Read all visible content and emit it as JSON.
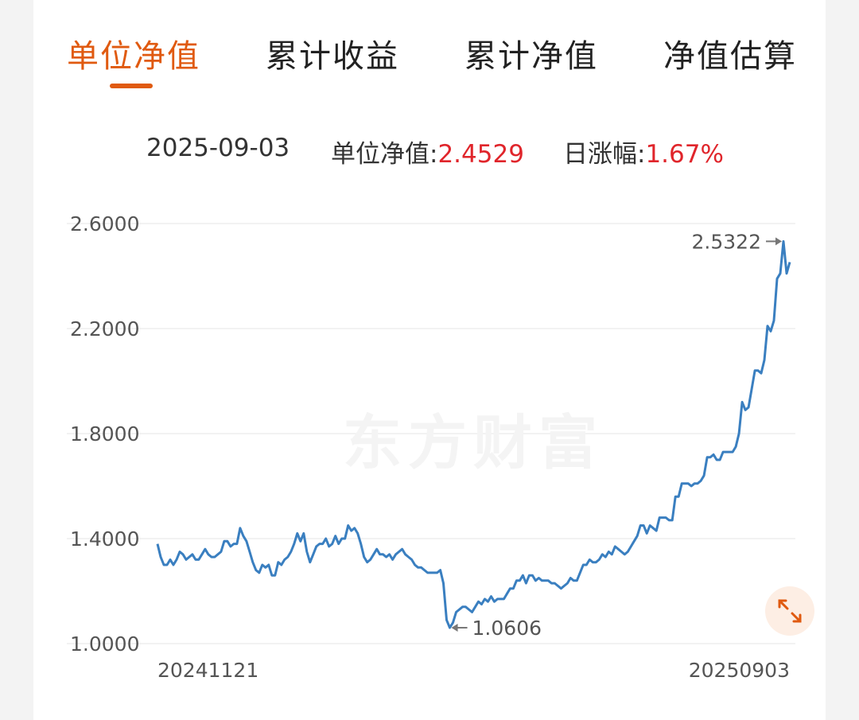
{
  "tabs": [
    {
      "label": "单位净值",
      "active": true
    },
    {
      "label": "累计收益",
      "active": false
    },
    {
      "label": "累计净值",
      "active": false
    },
    {
      "label": "净值估算",
      "active": false
    }
  ],
  "info": {
    "date": "2025-09-03",
    "nav_label": "单位净值:",
    "nav_value": "2.4529",
    "change_label": "日涨幅:",
    "change_value": "1.67%"
  },
  "watermark": "东方财富",
  "colors": {
    "accent": "#e05a10",
    "line": "#3a7fc0",
    "up": "#e0252b"
  },
  "chart_data": {
    "type": "line",
    "x_start_label": "20241121",
    "x_end_label": "20250903",
    "ylim": [
      1.0,
      2.6
    ],
    "yticks": [
      "2.6000",
      "2.2000",
      "1.8000",
      "1.4000",
      "1.0000"
    ],
    "ytick_values": [
      2.6,
      2.2,
      1.8,
      1.4,
      1.0
    ],
    "max_label": "2.5322",
    "max_value": 2.5322,
    "min_label": "1.0606",
    "min_value": 1.0606,
    "series": [
      {
        "values": [
          1.38,
          1.33,
          1.3,
          1.3,
          1.32,
          1.3,
          1.32,
          1.35,
          1.34,
          1.32,
          1.33,
          1.34,
          1.32,
          1.32,
          1.34,
          1.36,
          1.34,
          1.33,
          1.33,
          1.34,
          1.35,
          1.39,
          1.39,
          1.37,
          1.38,
          1.38,
          1.44,
          1.41,
          1.39,
          1.35,
          1.31,
          1.28,
          1.27,
          1.3,
          1.29,
          1.3,
          1.26,
          1.26,
          1.31,
          1.3,
          1.32,
          1.33,
          1.35,
          1.38,
          1.42,
          1.39,
          1.42,
          1.35,
          1.31,
          1.34,
          1.37,
          1.38,
          1.38,
          1.4,
          1.37,
          1.38,
          1.41,
          1.38,
          1.4,
          1.4,
          1.45,
          1.43,
          1.44,
          1.42,
          1.38,
          1.33,
          1.31,
          1.32,
          1.34,
          1.36,
          1.34,
          1.34,
          1.33,
          1.34,
          1.32,
          1.34,
          1.35,
          1.36,
          1.34,
          1.33,
          1.32,
          1.3,
          1.29,
          1.29,
          1.28,
          1.27,
          1.27,
          1.27,
          1.27,
          1.28,
          1.23,
          1.09,
          1.0606,
          1.08,
          1.12,
          1.13,
          1.14,
          1.14,
          1.13,
          1.12,
          1.14,
          1.16,
          1.15,
          1.17,
          1.16,
          1.18,
          1.16,
          1.17,
          1.17,
          1.17,
          1.19,
          1.21,
          1.21,
          1.24,
          1.24,
          1.26,
          1.23,
          1.26,
          1.26,
          1.24,
          1.25,
          1.24,
          1.24,
          1.24,
          1.23,
          1.23,
          1.22,
          1.21,
          1.22,
          1.23,
          1.25,
          1.24,
          1.24,
          1.27,
          1.3,
          1.3,
          1.32,
          1.31,
          1.31,
          1.32,
          1.34,
          1.33,
          1.35,
          1.34,
          1.37,
          1.36,
          1.35,
          1.34,
          1.35,
          1.37,
          1.39,
          1.41,
          1.45,
          1.45,
          1.42,
          1.45,
          1.44,
          1.43,
          1.48,
          1.48,
          1.48,
          1.47,
          1.47,
          1.56,
          1.56,
          1.61,
          1.61,
          1.61,
          1.6,
          1.61,
          1.61,
          1.62,
          1.64,
          1.71,
          1.71,
          1.72,
          1.7,
          1.7,
          1.73,
          1.73,
          1.73,
          1.73,
          1.75,
          1.8,
          1.92,
          1.89,
          1.9,
          1.97,
          2.04,
          2.04,
          2.03,
          2.08,
          2.21,
          2.19,
          2.23,
          2.39,
          2.41,
          2.5322,
          2.41,
          2.4529
        ]
      }
    ]
  }
}
